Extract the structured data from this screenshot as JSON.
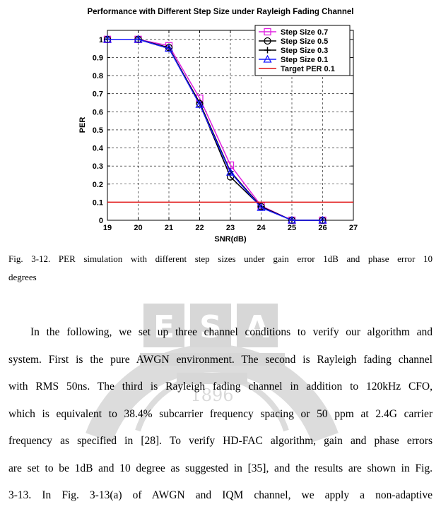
{
  "chart_data": {
    "type": "line",
    "title": "Performance with Different Step Size under Rayleigh Fading Channel",
    "xlabel": "SNR(dB)",
    "ylabel": "PER",
    "xlim": [
      19,
      27
    ],
    "ylim": [
      0,
      1.05
    ],
    "xticks": [
      "19",
      "20",
      "21",
      "22",
      "23",
      "24",
      "25",
      "26",
      "27"
    ],
    "yticks": [
      "0",
      "0.1",
      "0.2",
      "0.3",
      "0.4",
      "0.5",
      "0.6",
      "0.7",
      "0.8",
      "0.9",
      "1"
    ],
    "grid": true,
    "legend_position": "top-right",
    "series": [
      {
        "name": "Step Size 0.7",
        "color": "#e020e0",
        "marker": "square",
        "x": [
          19,
          20,
          21,
          22,
          23,
          24,
          25,
          26
        ],
        "y": [
          1.0,
          1.0,
          0.965,
          0.675,
          0.305,
          0.08,
          0.0,
          0.0
        ]
      },
      {
        "name": "Step Size 0.5",
        "color": "#000000",
        "marker": "circle",
        "x": [
          19,
          20,
          21,
          22,
          23,
          24,
          25,
          26
        ],
        "y": [
          1.0,
          1.0,
          0.955,
          0.645,
          0.24,
          0.075,
          0.0,
          0.0
        ]
      },
      {
        "name": "Step Size 0.3",
        "color": "#000000",
        "marker": "plus",
        "x": [
          19,
          20,
          21,
          22,
          23,
          24,
          25,
          26
        ],
        "y": [
          1.0,
          1.0,
          0.95,
          0.65,
          0.27,
          0.075,
          0.0,
          0.0
        ]
      },
      {
        "name": "Step Size 0.1",
        "color": "#1a1aff",
        "marker": "triangle",
        "x": [
          19,
          20,
          21,
          22,
          23,
          24,
          25,
          26
        ],
        "y": [
          1.0,
          1.0,
          0.95,
          0.64,
          0.265,
          0.07,
          0.0,
          0.0
        ]
      },
      {
        "name": "Target PER 0.1",
        "color": "#e01010",
        "marker": "none",
        "x": [
          19,
          27
        ],
        "y": [
          0.1,
          0.1
        ]
      }
    ]
  },
  "caption": {
    "line1": "Fig. 3-12. PER simulation with different step sizes under gain error 1dB and phase error 10",
    "line2": "degrees"
  },
  "paragraph": [
    "In the following, we set up three channel conditions to verify our algorithm and",
    "system. First is the pure AWGN environment. The second is Rayleigh fading channel",
    "with RMS 50ns. The third is Rayleigh fading channel in addition to 120kHz CFO,",
    "which is equivalent to 38.4% subcarrier frequency spacing or 50 ppm at 2.4G carrier",
    "frequency as specified in [28]. To verify HD-FAC algorithm, gain and phase errors",
    "are set to be 1dB and 10 degree as suggested in [35], and the results are shown in Fig.",
    "3-13. In Fig. 3-13(a) of AWGN and IQM channel, we apply a non-adaptive"
  ],
  "colors": {
    "watermark": "#d9d9d9",
    "grid": "#000000",
    "frame": "#000000"
  }
}
